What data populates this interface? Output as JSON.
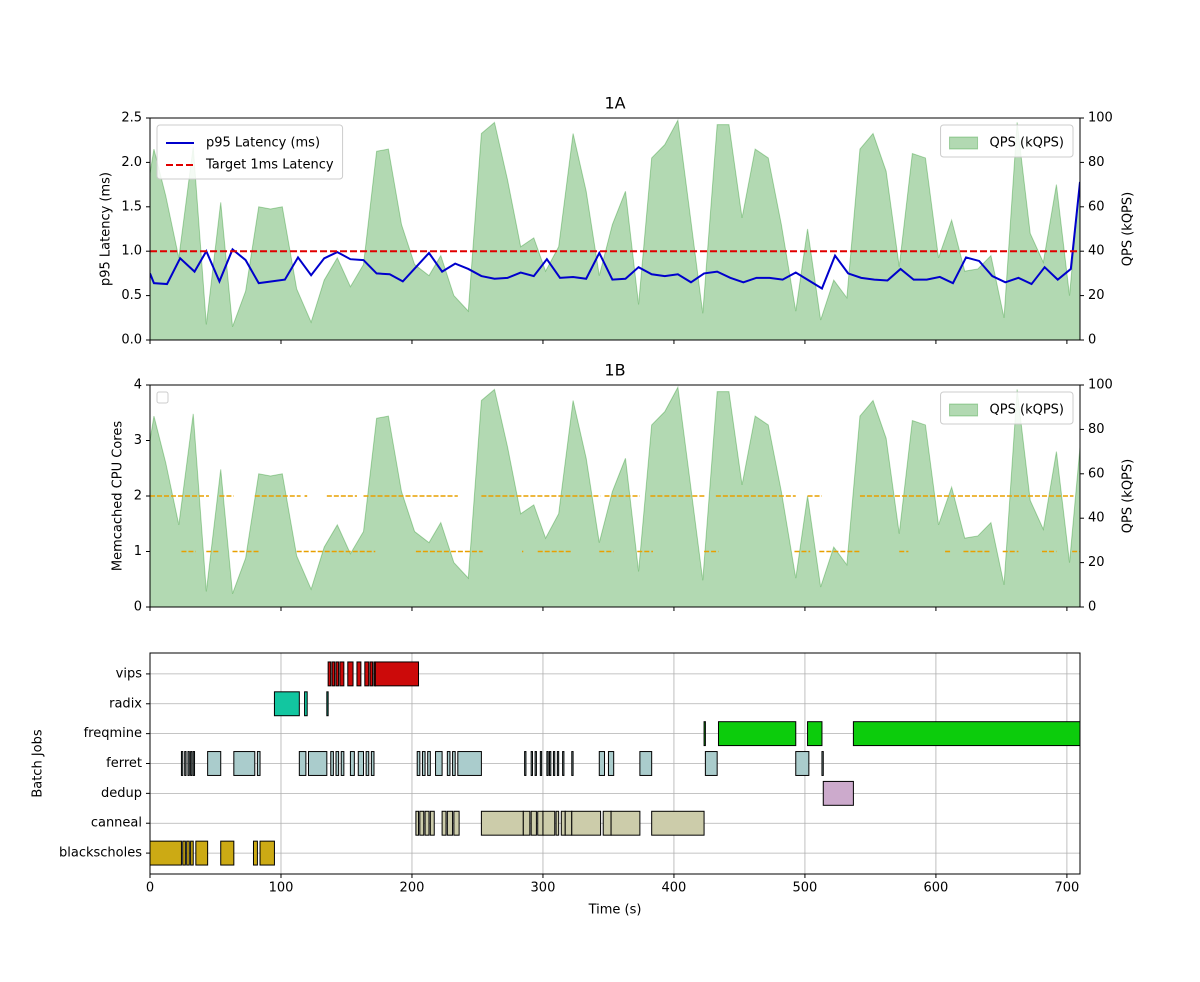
{
  "chart_data": [
    {
      "type": "line",
      "title": "1A",
      "ylabel": "p95 Latency (ms)",
      "y2label": "QPS (kQPS)",
      "xlim": [
        0,
        710
      ],
      "xticks": [
        0,
        100,
        200,
        300,
        400,
        500,
        600,
        700
      ],
      "ylim": [
        0,
        2.5
      ],
      "yticks": [
        {
          "value": 0,
          "label": "0.0"
        },
        0.5,
        {
          "value": 1,
          "label": "1.0"
        },
        1.5,
        {
          "value": 2,
          "label": "2.0"
        },
        2.5
      ],
      "y2lim": [
        0,
        100
      ],
      "y2ticks": [
        0,
        20,
        40,
        60,
        80,
        100
      ],
      "legend": "upper left",
      "legend_y2": "upper right",
      "series": [
        {
          "name": "QPS (kQPS)",
          "color": "#008000",
          "axis": "y2",
          "style": "area",
          "x": [
            0,
            3,
            12,
            22,
            33,
            43,
            54,
            63,
            73,
            83,
            92,
            101,
            112,
            123,
            133,
            143,
            153,
            163,
            173,
            182,
            192,
            202,
            213,
            222,
            232,
            243,
            253,
            263,
            273,
            283,
            293,
            302,
            312,
            323,
            333,
            343,
            353,
            363,
            373,
            383,
            393,
            403,
            412,
            422,
            433,
            442,
            452,
            462,
            472,
            482,
            493,
            502,
            512,
            522,
            532,
            542,
            552,
            562,
            572,
            582,
            592,
            602,
            612,
            622,
            632,
            642,
            652,
            662,
            672,
            682,
            692,
            702,
            710
          ],
          "values": [
            75,
            86,
            65,
            37,
            87,
            7,
            62,
            6,
            22,
            60,
            59,
            60,
            23,
            8,
            27,
            37,
            24,
            34,
            85,
            86,
            52,
            34,
            29,
            38,
            20,
            13,
            93,
            98,
            72,
            42,
            46,
            31,
            42,
            93,
            67,
            29,
            52,
            67,
            16,
            82,
            88,
            99,
            58,
            12,
            97,
            97,
            55,
            86,
            82,
            52,
            13,
            50,
            9,
            27,
            19,
            86,
            93,
            76,
            33,
            84,
            82,
            37,
            54,
            31,
            32,
            38,
            10,
            98,
            48,
            35,
            70,
            20,
            72
          ]
        },
        {
          "name": "p95 Latency (ms)",
          "color": "#0000cc",
          "style": "solid",
          "x": [
            0,
            3,
            13,
            23,
            34,
            43,
            53,
            63,
            73,
            83,
            93,
            103,
            113,
            123,
            133,
            143,
            153,
            163,
            173,
            183,
            193,
            203,
            213,
            223,
            233,
            243,
            253,
            263,
            273,
            283,
            293,
            303,
            313,
            323,
            333,
            343,
            353,
            363,
            373,
            383,
            393,
            403,
            413,
            423,
            433,
            443,
            453,
            463,
            473,
            483,
            493,
            503,
            513,
            523,
            533,
            543,
            553,
            563,
            573,
            583,
            593,
            603,
            613,
            623,
            633,
            643,
            653,
            663,
            673,
            683,
            693,
            703,
            710
          ],
          "values": [
            0.75,
            0.64,
            0.63,
            0.92,
            0.77,
            1.0,
            0.66,
            1.02,
            0.9,
            0.64,
            0.66,
            0.68,
            0.93,
            0.73,
            0.92,
            0.99,
            0.91,
            0.9,
            0.75,
            0.74,
            0.66,
            0.82,
            0.98,
            0.77,
            0.86,
            0.8,
            0.72,
            0.69,
            0.7,
            0.76,
            0.72,
            0.91,
            0.7,
            0.71,
            0.69,
            0.98,
            0.68,
            0.69,
            0.82,
            0.74,
            0.72,
            0.74,
            0.65,
            0.75,
            0.77,
            0.7,
            0.65,
            0.7,
            0.7,
            0.68,
            0.76,
            0.67,
            0.58,
            0.95,
            0.75,
            0.7,
            0.68,
            0.67,
            0.8,
            0.68,
            0.68,
            0.71,
            0.64,
            0.93,
            0.89,
            0.72,
            0.65,
            0.7,
            0.63,
            0.82,
            0.68,
            0.8,
            1.78
          ]
        },
        {
          "name": "Target 1ms Latency",
          "color": "#e00000",
          "style": "dashed",
          "x": [
            0,
            710
          ],
          "values": [
            1,
            1
          ]
        }
      ]
    },
    {
      "type": "line",
      "title": "1B",
      "ylabel": "Memcached CPU Cores",
      "y2label": "QPS (kQPS)",
      "xlim": [
        0,
        710
      ],
      "xticks": [
        0,
        100,
        200,
        300,
        400,
        500,
        600,
        700
      ],
      "ylim": [
        0,
        4
      ],
      "yticks": [
        0,
        1,
        2,
        3,
        4
      ],
      "y2lim": [
        0,
        100
      ],
      "y2ticks": [
        0,
        20,
        40,
        60,
        80,
        100
      ],
      "legend": "upper left",
      "legend_y2": "upper right",
      "series": [
        {
          "name": "QPS (kQPS)",
          "color": "#008000",
          "axis": "y2",
          "style": "area",
          "x": [
            0,
            3,
            12,
            22,
            33,
            43,
            54,
            63,
            73,
            83,
            92,
            101,
            112,
            123,
            133,
            143,
            153,
            163,
            173,
            182,
            192,
            202,
            213,
            222,
            232,
            243,
            253,
            263,
            273,
            283,
            293,
            302,
            312,
            323,
            333,
            343,
            353,
            363,
            373,
            383,
            393,
            403,
            412,
            422,
            433,
            442,
            452,
            462,
            472,
            482,
            493,
            502,
            512,
            522,
            532,
            542,
            552,
            562,
            572,
            582,
            592,
            602,
            612,
            622,
            632,
            642,
            652,
            662,
            672,
            682,
            692,
            702,
            710
          ],
          "values": [
            75,
            86,
            65,
            37,
            87,
            7,
            62,
            6,
            22,
            60,
            59,
            60,
            23,
            8,
            27,
            37,
            24,
            34,
            85,
            86,
            52,
            34,
            29,
            38,
            20,
            13,
            93,
            98,
            72,
            42,
            46,
            31,
            42,
            93,
            67,
            29,
            52,
            67,
            16,
            82,
            88,
            99,
            58,
            12,
            97,
            97,
            55,
            86,
            82,
            52,
            13,
            50,
            9,
            27,
            19,
            86,
            93,
            76,
            33,
            84,
            82,
            37,
            54,
            31,
            32,
            38,
            10,
            98,
            48,
            35,
            70,
            20,
            72
          ]
        }
      ],
      "cpu_color": "#e8a000",
      "cpu_segments": [
        {
          "start": 0,
          "end": 45,
          "cores": 2
        },
        {
          "start": 53,
          "end": 64,
          "cores": 2
        },
        {
          "start": 80,
          "end": 115,
          "cores": 2
        },
        {
          "start": 118,
          "end": 120,
          "cores": 2
        },
        {
          "start": 135,
          "end": 158,
          "cores": 2
        },
        {
          "start": 163,
          "end": 235,
          "cores": 2
        },
        {
          "start": 253,
          "end": 344,
          "cores": 2
        },
        {
          "start": 347,
          "end": 374,
          "cores": 2
        },
        {
          "start": 382,
          "end": 424,
          "cores": 2
        },
        {
          "start": 432,
          "end": 493,
          "cores": 2
        },
        {
          "start": 502,
          "end": 513,
          "cores": 2
        },
        {
          "start": 542,
          "end": 705,
          "cores": 2
        },
        {
          "start": 24,
          "end": 35,
          "cores": 1
        },
        {
          "start": 43,
          "end": 53,
          "cores": 1
        },
        {
          "start": 63,
          "end": 84,
          "cores": 1
        },
        {
          "start": 112,
          "end": 172,
          "cores": 1
        },
        {
          "start": 203,
          "end": 254,
          "cores": 1
        },
        {
          "start": 284,
          "end": 285,
          "cores": 1
        },
        {
          "start": 296,
          "end": 322,
          "cores": 1
        },
        {
          "start": 343,
          "end": 354,
          "cores": 1
        },
        {
          "start": 372,
          "end": 384,
          "cores": 1
        },
        {
          "start": 423,
          "end": 434,
          "cores": 1
        },
        {
          "start": 492,
          "end": 504,
          "cores": 1
        },
        {
          "start": 511,
          "end": 543,
          "cores": 1
        },
        {
          "start": 572,
          "end": 579,
          "cores": 1
        },
        {
          "start": 607,
          "end": 611,
          "cores": 1
        },
        {
          "start": 621,
          "end": 642,
          "cores": 1
        },
        {
          "start": 651,
          "end": 663,
          "cores": 1
        },
        {
          "start": 681,
          "end": 692,
          "cores": 1
        },
        {
          "start": 704,
          "end": 710,
          "cores": 1
        }
      ]
    },
    {
      "type": "gantt",
      "xlabel": "Time (s)",
      "ylabel": "Batch Jobs",
      "grid": true,
      "xlim": [
        0,
        710
      ],
      "xticks": [
        0,
        100,
        200,
        300,
        400,
        500,
        600,
        700
      ],
      "series": [
        {
          "name": "blackscholes",
          "color": "#ccaa14",
          "intervals": [
            [
              0,
              24
            ],
            [
              25,
              27
            ],
            [
              28,
              30
            ],
            [
              31,
              33
            ],
            [
              35,
              44
            ],
            [
              54,
              64
            ],
            [
              79,
              82
            ],
            [
              84,
              95
            ]
          ]
        },
        {
          "name": "canneal",
          "color": "#ccccaa",
          "intervals": [
            [
              203,
              205
            ],
            [
              206,
              209
            ],
            [
              210,
              213
            ],
            [
              214,
              217
            ],
            [
              223,
              226
            ],
            [
              227,
              231
            ],
            [
              232,
              236
            ],
            [
              253,
              285
            ],
            [
              285,
              290
            ],
            [
              291,
              295
            ],
            [
              296,
              300
            ],
            [
              300,
              309
            ],
            [
              310,
              312
            ],
            [
              314,
              317
            ],
            [
              317,
              322
            ],
            [
              322,
              344
            ],
            [
              346,
              352
            ],
            [
              352,
              374
            ],
            [
              383,
              423
            ]
          ]
        },
        {
          "name": "dedup",
          "color": "#ccaacc",
          "intervals": [
            [
              514,
              537
            ]
          ]
        },
        {
          "name": "ferret",
          "color": "#aacccc",
          "intervals": [
            [
              24,
              25
            ],
            [
              26.5,
              27.5
            ],
            [
              29,
              30
            ],
            [
              31,
              32
            ],
            [
              33,
              34
            ],
            [
              44,
              54
            ],
            [
              64,
              80
            ],
            [
              82,
              84
            ],
            [
              114,
              119
            ],
            [
              121,
              135
            ],
            [
              138,
              140
            ],
            [
              142,
              144
            ],
            [
              146,
              148
            ],
            [
              153,
              156
            ],
            [
              159,
              163
            ],
            [
              165,
              167
            ],
            [
              169,
              171
            ],
            [
              204,
              206
            ],
            [
              208,
              210
            ],
            [
              212,
              214
            ],
            [
              218,
              223
            ],
            [
              227,
              229
            ],
            [
              231,
              233
            ],
            [
              235,
              253
            ],
            [
              286,
              287
            ],
            [
              291,
              292
            ],
            [
              294,
              295
            ],
            [
              298,
              299
            ],
            [
              303,
              304
            ],
            [
              305,
              306
            ],
            [
              308,
              309
            ],
            [
              311,
              312
            ],
            [
              315,
              316
            ],
            [
              322,
              323
            ],
            [
              343,
              347
            ],
            [
              350,
              354
            ],
            [
              374,
              383
            ],
            [
              424,
              433
            ],
            [
              493,
              503
            ],
            [
              513,
              514
            ]
          ]
        },
        {
          "name": "freqmine",
          "color": "#0ccc0c",
          "intervals": [
            [
              423,
              424
            ],
            [
              434,
              493
            ],
            [
              502,
              513
            ],
            [
              537,
              710
            ]
          ]
        },
        {
          "name": "radix",
          "color": "#12c6a0",
          "intervals": [
            [
              95,
              114
            ],
            [
              118,
              120
            ],
            [
              135,
              136
            ]
          ]
        },
        {
          "name": "vips",
          "color": "#cc0a0a",
          "intervals": [
            [
              136,
              138
            ],
            [
              139,
              141
            ],
            [
              142,
              144
            ],
            [
              145,
              148
            ],
            [
              151,
              155
            ],
            [
              158,
              161
            ],
            [
              164,
              167
            ],
            [
              168,
              170
            ],
            [
              171,
              172
            ],
            [
              172,
              205
            ]
          ]
        }
      ]
    }
  ]
}
